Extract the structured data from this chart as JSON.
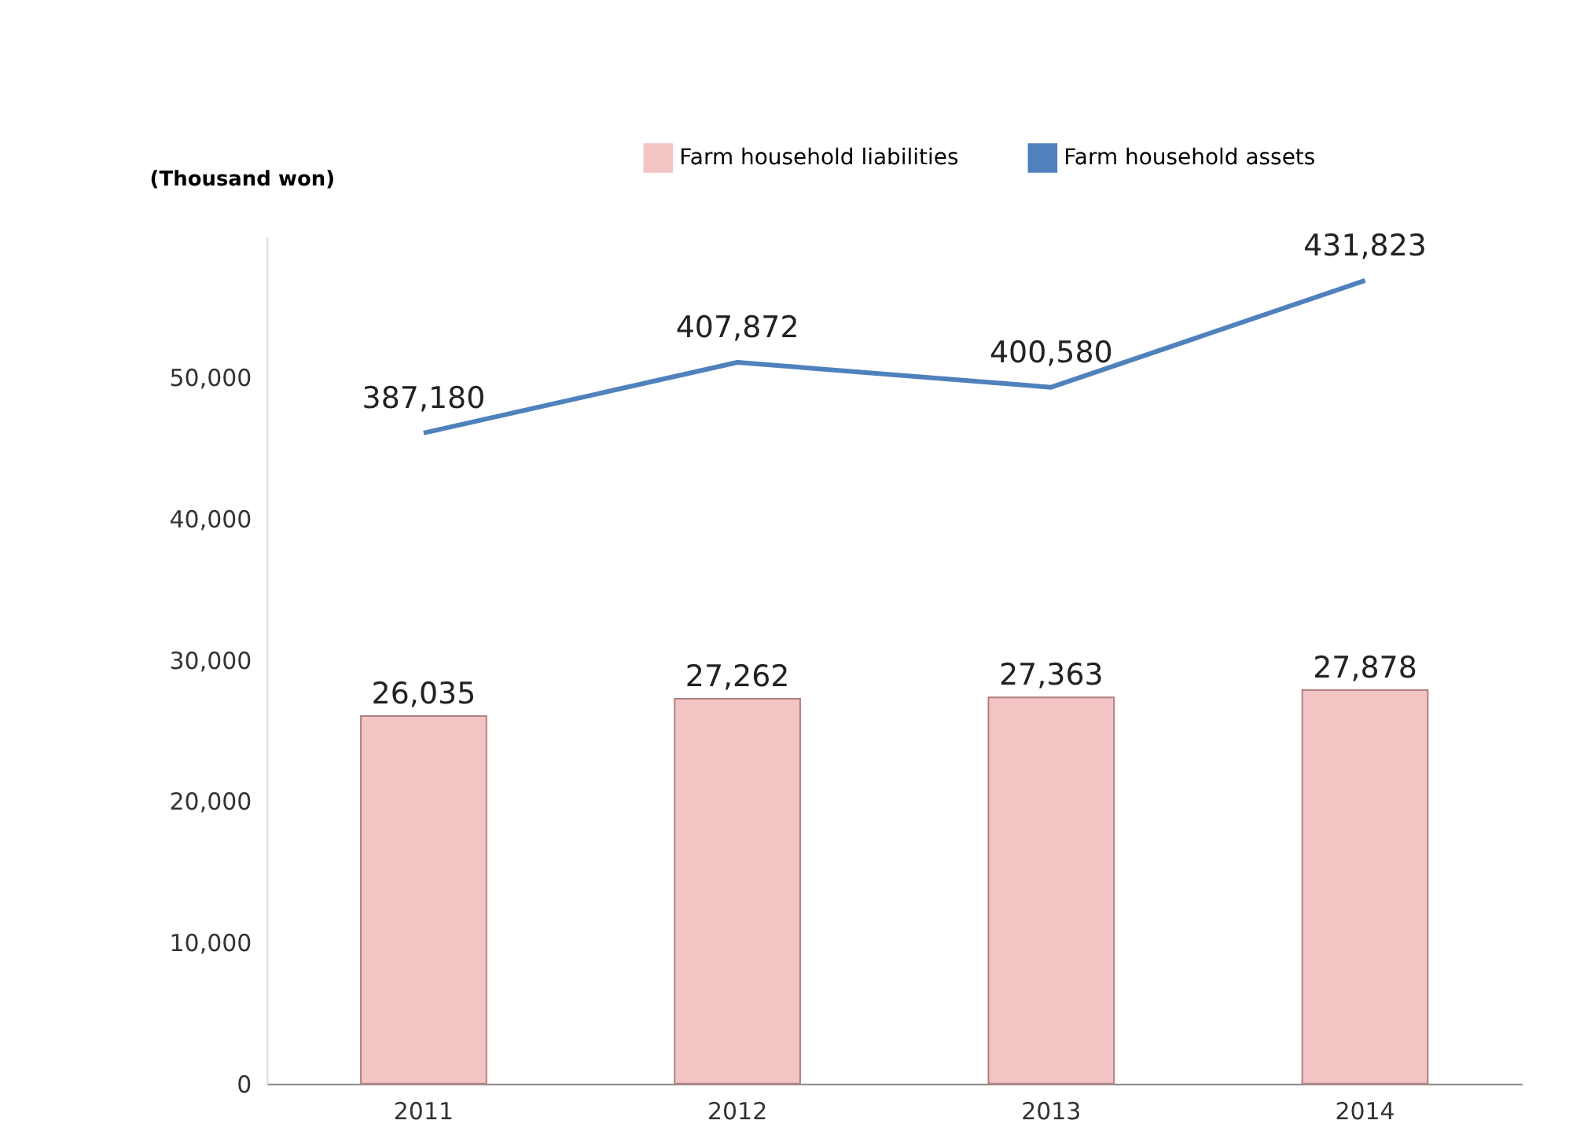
{
  "chart_data": {
    "type": "bar",
    "ylabel": "(Thousand won)",
    "categories": [
      "2011",
      "2012",
      "2013",
      "2014"
    ],
    "series": [
      {
        "name": "Farm household liabilities",
        "color": "#f2c4c4",
        "values": [
          26035,
          27262,
          27363,
          27878
        ],
        "value_labels": [
          "26,035",
          "27,262",
          "27,363",
          "27,878"
        ]
      },
      {
        "name": "Farm household assets",
        "type": "line",
        "axis": "y2",
        "color": "#4f81bd",
        "values": [
          387180,
          407872,
          400580,
          431823
        ],
        "value_labels": [
          "387,180",
          "407,872",
          "400,580",
          "431,823"
        ]
      }
    ],
    "ylim": [
      0,
      60000
    ],
    "yticks": [
      {
        "value": 0,
        "label": "0"
      },
      {
        "value": 10000,
        "label": "10,000"
      },
      {
        "value": 20000,
        "label": "20,000"
      },
      {
        "value": 30000,
        "label": "30,000"
      },
      {
        "value": 40000,
        "label": "40,000"
      },
      {
        "value": 50000,
        "label": "50,000"
      }
    ],
    "grid": false,
    "legend": "top right"
  }
}
